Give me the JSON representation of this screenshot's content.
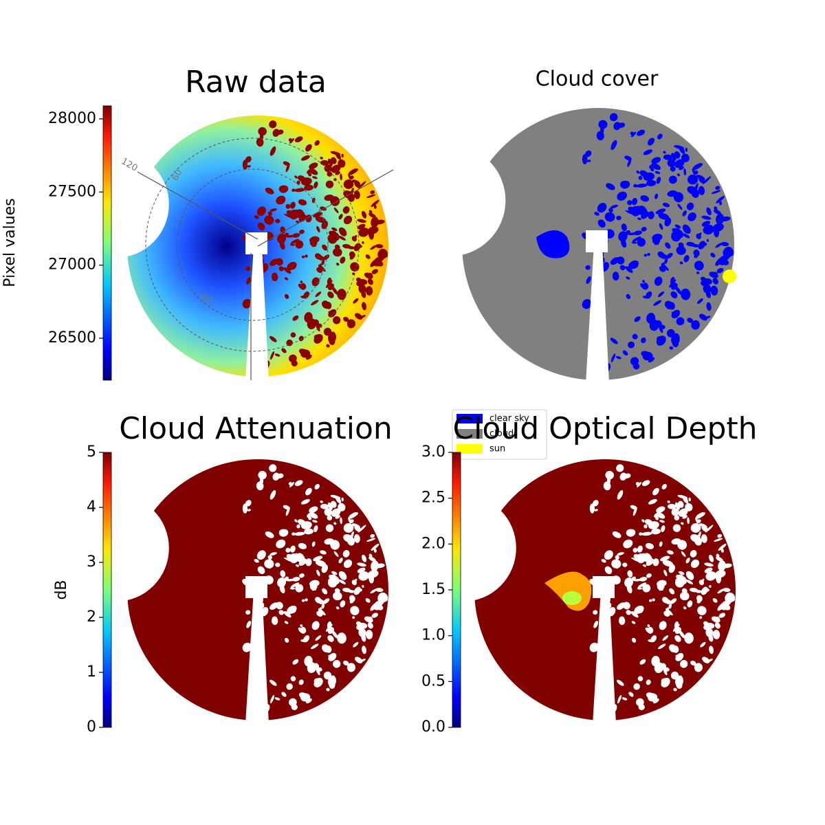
{
  "chart_data": [
    {
      "type": "image",
      "title": "Raw data",
      "colormap": "jet",
      "colorbar": {
        "label": "Pixel values",
        "lim": [
          26213,
          28089
        ],
        "ticks": [
          26500,
          27000,
          27500,
          28000
        ]
      },
      "annotations": [
        "120",
        "60",
        "40"
      ]
    },
    {
      "type": "image",
      "title": "Cloud cover",
      "legend": [
        {
          "name": "clear sky",
          "color": "#0000ff"
        },
        {
          "name": "cloud",
          "color": "#808080"
        },
        {
          "name": "sun",
          "color": "#ffff00"
        }
      ]
    },
    {
      "type": "image",
      "title": "Cloud Attenuation",
      "colormap": "jet",
      "colorbar": {
        "label": "dB",
        "lim": [
          0,
          5
        ],
        "ticks": [
          0,
          1,
          2,
          3,
          4,
          5
        ]
      }
    },
    {
      "type": "image",
      "title": "Cloud Optical Depth",
      "colormap": "jet",
      "colorbar": {
        "lim": [
          0,
          3
        ],
        "ticks": [
          {
            "value": 0,
            "label": "0.0"
          },
          0.5,
          {
            "value": 1,
            "label": "1.0"
          },
          1.5,
          {
            "value": 2,
            "label": "2.0"
          },
          2.5,
          {
            "value": 3,
            "label": "3.0"
          }
        ]
      }
    }
  ]
}
